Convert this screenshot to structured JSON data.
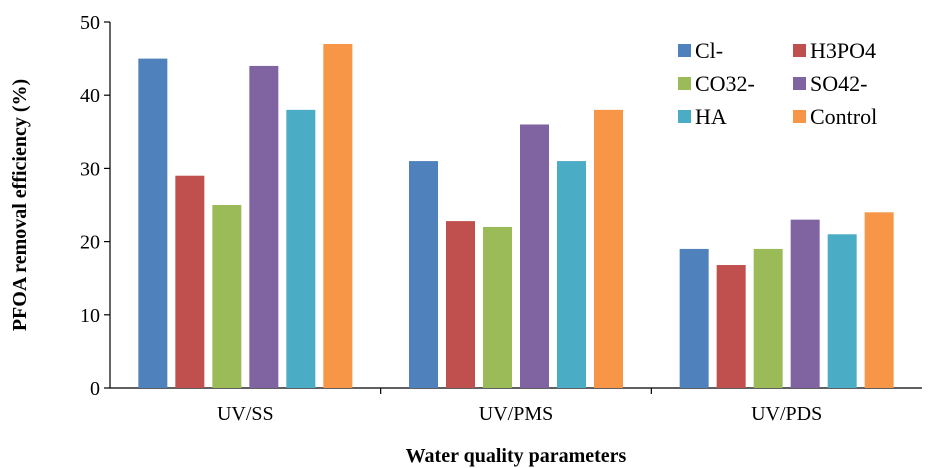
{
  "chart_data": {
    "type": "bar",
    "title": "",
    "xlabel": "Water quality parameters",
    "ylabel": "PFOA removal efficiency (%)",
    "ylim": [
      0,
      50
    ],
    "yticks": [
      0,
      10,
      20,
      30,
      40,
      50
    ],
    "grid": false,
    "legend_position": "top-right",
    "categories": [
      "UV/SS",
      "UV/PMS",
      "UV/PDS"
    ],
    "series": [
      {
        "name": "Cl-",
        "color": "#4F81BD",
        "values": [
          45,
          31,
          19
        ]
      },
      {
        "name": "H3PO4",
        "color": "#C0504D",
        "values": [
          29,
          22.8,
          16.8
        ]
      },
      {
        "name": "CO32-",
        "color": "#9BBB59",
        "values": [
          25,
          22,
          19
        ]
      },
      {
        "name": "SO42-",
        "color": "#8064A2",
        "values": [
          44,
          36,
          23
        ]
      },
      {
        "name": "HA",
        "color": "#4BACC6",
        "values": [
          38,
          31,
          21
        ]
      },
      {
        "name": "Control",
        "color": "#F79646",
        "values": [
          47,
          38,
          24
        ]
      }
    ]
  }
}
